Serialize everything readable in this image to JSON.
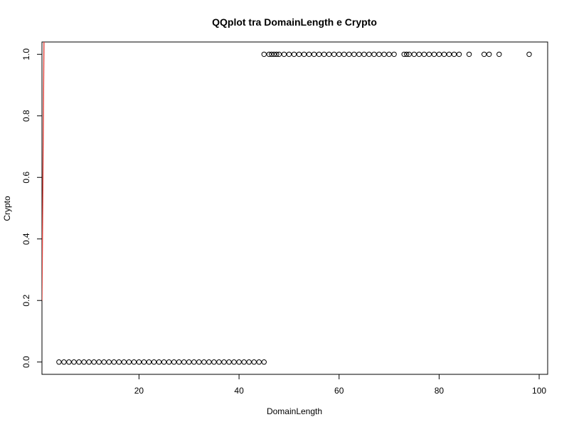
{
  "chart_data": {
    "type": "scatter",
    "title": "QQplot tra DomainLength e Crypto",
    "xlabel": "DomainLength",
    "ylabel": "Crypto",
    "xlim": [
      0.6,
      101.7
    ],
    "ylim": [
      -0.04,
      1.04
    ],
    "x_ticks": [
      20,
      40,
      60,
      80,
      100
    ],
    "x_tick_labels": [
      "20",
      "40",
      "60",
      "80",
      "100"
    ],
    "y_ticks": [
      0.0,
      0.2,
      0.4,
      0.6,
      0.8,
      1.0
    ],
    "y_tick_labels": [
      "0.0",
      "0.2",
      "0.4",
      "0.6",
      "0.8",
      "1.0"
    ],
    "grid": false,
    "legend": "none",
    "series": [
      {
        "values_x": [
          4,
          5,
          6,
          7,
          8,
          9,
          10,
          11,
          12,
          13,
          14,
          15,
          16,
          17,
          18,
          19,
          20,
          21,
          22,
          23,
          24,
          25,
          26,
          27,
          28,
          29,
          30,
          31,
          32,
          33,
          34,
          35,
          36,
          37,
          38,
          39,
          40,
          41,
          42,
          43,
          44,
          45
        ],
        "y": 0
      },
      {
        "values_x": [
          45,
          46,
          46.5,
          47,
          47.5,
          48,
          49,
          50,
          51,
          52,
          53,
          54,
          55,
          56,
          57,
          58,
          59,
          60,
          61,
          62,
          63,
          64,
          65,
          66,
          67,
          68,
          69,
          70,
          71,
          73,
          73.5,
          74,
          75,
          76,
          77,
          78,
          79,
          80,
          81,
          82,
          83,
          84,
          86,
          89,
          90,
          92,
          98
        ],
        "y": 1
      }
    ],
    "reference_line": {
      "x": [
        0.6,
        1.0
      ],
      "y": [
        0.2,
        1.04
      ],
      "color": "#e0403a"
    },
    "colors": {
      "points": "#000000",
      "line": "#e0403a",
      "axes": "#000000"
    }
  }
}
